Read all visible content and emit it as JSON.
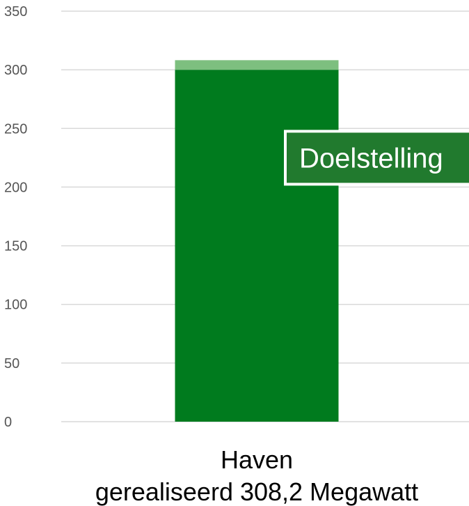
{
  "chart_data": {
    "type": "bar",
    "stacked": true,
    "categories": [
      "Haven"
    ],
    "category_sublabels": [
      "gerealiseerd 308,2 Megawatt"
    ],
    "series": [
      {
        "values": [
          300
        ],
        "color": "#007b1e"
      },
      {
        "values": [
          8.2
        ],
        "color": "#7dbf7f"
      }
    ],
    "ylim": [
      0,
      350
    ],
    "yticks": [
      "0",
      "50",
      "100",
      "150",
      "200",
      "250",
      "300",
      "350"
    ],
    "grid": true,
    "annotation": {
      "text": "Doelstelling",
      "y": 225,
      "color": "#217a2e"
    }
  }
}
